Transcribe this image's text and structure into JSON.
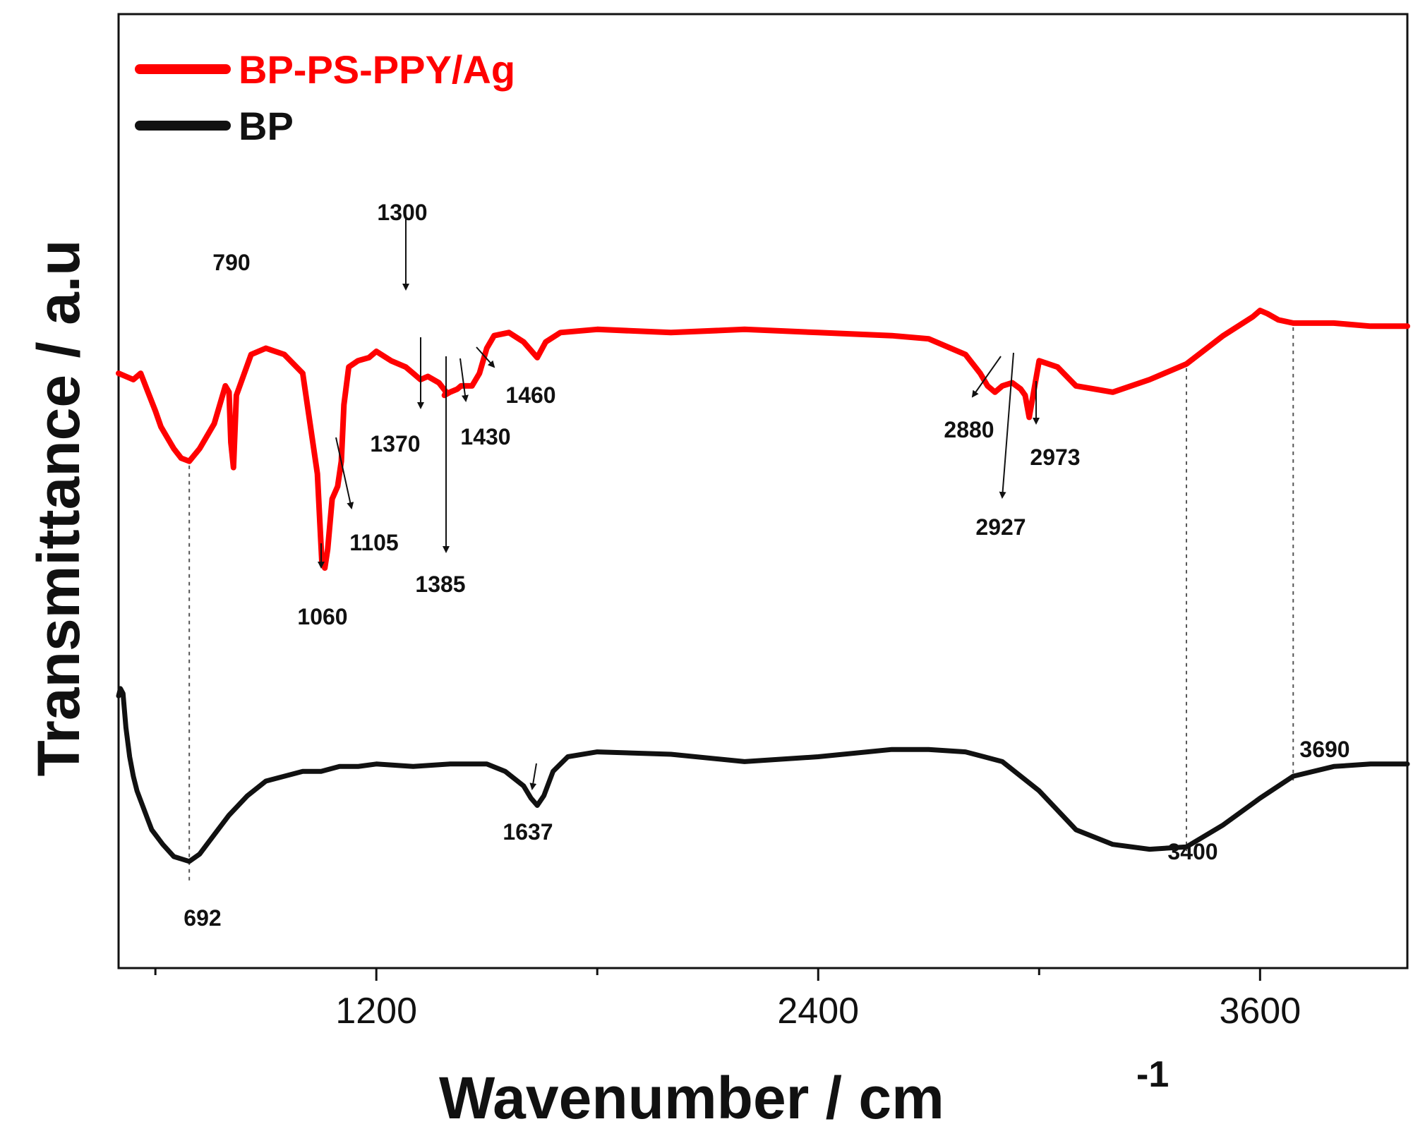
{
  "chart_data": {
    "type": "line",
    "title": "",
    "xlabel": "Wavenumber  / cm",
    "xlabel_superscript": "-1",
    "ylabel": "Transmittance / a.u",
    "xlim": [
      500,
      4000
    ],
    "x_ticks": [
      1200,
      2400,
      3600
    ],
    "y_ticks": [],
    "colors": {
      "BP-PS-PPY/Ag": "#ff0000",
      "BP": "#111111",
      "annotation": "#111111"
    },
    "series": [
      {
        "name": "BP-PS-PPY/Ag",
        "color": "#ff0000",
        "x": [
          500,
          520,
          540,
          560,
          580,
          600,
          615,
          630,
          650,
          670,
          692,
          720,
          760,
          790,
          800,
          805,
          812,
          820,
          860,
          900,
          950,
          1000,
          1040,
          1052,
          1060,
          1068,
          1080,
          1095,
          1105,
          1112,
          1125,
          1150,
          1180,
          1200,
          1240,
          1280,
          1300,
          1320,
          1340,
          1370,
          1390,
          1385,
          1400,
          1420,
          1430,
          1445,
          1460,
          1480,
          1500,
          1520,
          1560,
          1600,
          1637,
          1660,
          1700,
          1800,
          2000,
          2200,
          2400,
          2600,
          2700,
          2800,
          2840,
          2860,
          2880,
          2900,
          2927,
          2950,
          2962,
          2973,
          2985,
          3000,
          3050,
          3100,
          3200,
          3300,
          3400,
          3500,
          3580,
          3600,
          3620,
          3650,
          3690,
          3800,
          3900,
          4000
        ],
        "y": [
          62,
          61,
          60,
          62,
          56,
          50,
          45,
          42,
          38,
          35,
          34,
          38,
          46,
          58,
          56,
          40,
          32,
          55,
          68,
          70,
          68,
          62,
          30,
          2,
          0,
          6,
          22,
          26,
          34,
          52,
          64,
          66,
          67,
          69,
          66,
          64,
          62,
          60,
          61,
          59,
          56,
          55,
          56,
          57,
          58,
          58,
          58,
          62,
          70,
          74,
          75,
          72,
          67,
          72,
          75,
          76,
          75,
          76,
          75,
          74,
          73,
          68,
          62,
          58,
          56,
          58,
          59,
          57,
          55,
          48,
          56,
          66,
          64,
          58,
          56,
          60,
          65,
          74,
          80,
          82,
          81,
          79,
          78,
          78,
          77,
          77
        ]
      },
      {
        "name": "BP",
        "color": "#111111",
        "x": [
          500,
          505,
          512,
          520,
          530,
          540,
          550,
          560,
          570,
          580,
          590,
          600,
          620,
          650,
          692,
          720,
          760,
          800,
          850,
          900,
          950,
          1000,
          1050,
          1100,
          1150,
          1200,
          1300,
          1400,
          1500,
          1550,
          1600,
          1620,
          1637,
          1655,
          1680,
          1720,
          1800,
          2000,
          2200,
          2400,
          2600,
          2700,
          2800,
          2900,
          3000,
          3100,
          3200,
          3300,
          3400,
          3500,
          3600,
          3690,
          3800,
          3900,
          4000
        ],
        "y": [
          75,
          78,
          76,
          62,
          50,
          42,
          36,
          32,
          28,
          24,
          20,
          18,
          14,
          9,
          7,
          10,
          18,
          26,
          34,
          40,
          42,
          44,
          44,
          46,
          46,
          47,
          46,
          47,
          47,
          44,
          38,
          33,
          30,
          34,
          44,
          50,
          52,
          51,
          48,
          50,
          53,
          53,
          52,
          48,
          36,
          20,
          14,
          12,
          13,
          22,
          33,
          42,
          46,
          47,
          47
        ]
      }
    ],
    "legend": {
      "position": "top-left",
      "entries": [
        "BP-PS-PPY/Ag",
        "BP"
      ]
    },
    "annotations": [
      {
        "text": "790",
        "series": "BP-PS-PPY/Ag"
      },
      {
        "text": "1300",
        "series": "BP-PS-PPY/Ag"
      },
      {
        "text": "1370",
        "series": "BP-PS-PPY/Ag"
      },
      {
        "text": "1430",
        "series": "BP-PS-PPY/Ag"
      },
      {
        "text": "1460",
        "series": "BP-PS-PPY/Ag"
      },
      {
        "text": "1105",
        "series": "BP-PS-PPY/Ag"
      },
      {
        "text": "1060",
        "series": "BP-PS-PPY/Ag"
      },
      {
        "text": "1385",
        "series": "BP-PS-PPY/Ag"
      },
      {
        "text": "2880",
        "series": "BP-PS-PPY/Ag"
      },
      {
        "text": "2973",
        "series": "BP-PS-PPY/Ag"
      },
      {
        "text": "2927",
        "series": "BP-PS-PPY/Ag"
      },
      {
        "text": "692",
        "series": "BP"
      },
      {
        "text": "1637",
        "series": "BP"
      },
      {
        "text": "3400",
        "series": "BP"
      },
      {
        "text": "3690",
        "series": "BP"
      }
    ]
  }
}
